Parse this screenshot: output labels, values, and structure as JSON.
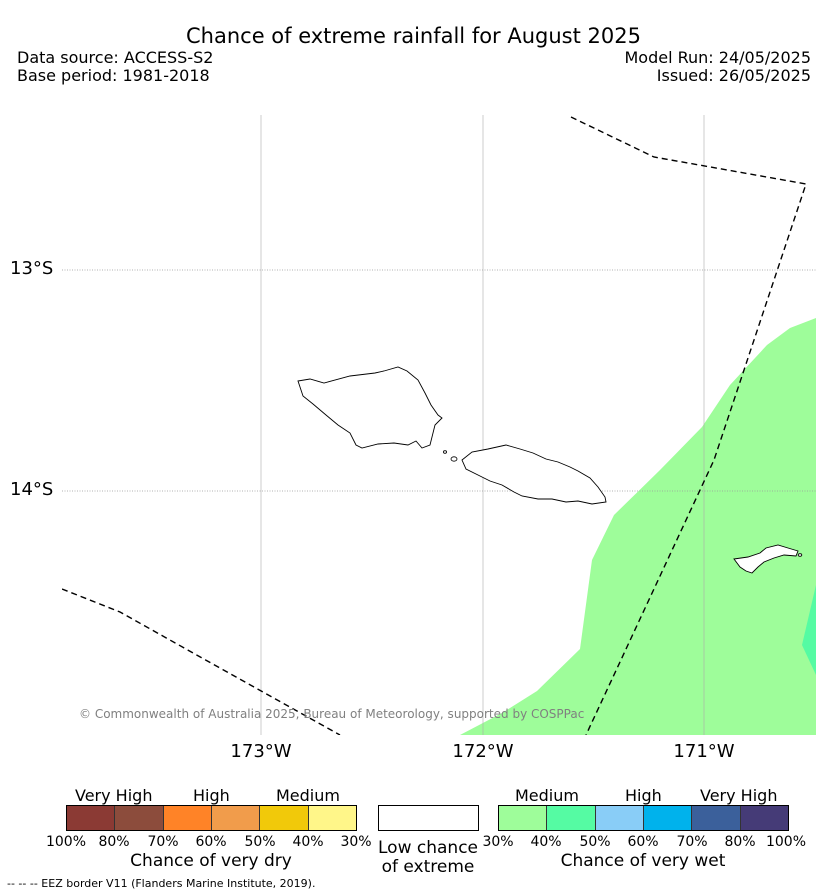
{
  "title": "Chance of extreme rainfall for August 2025",
  "meta": {
    "data_source": "Data source: ACCESS-S2",
    "base_period": "Base period: 1981-2018",
    "model_run": "Model Run: 24/05/2025",
    "issued": "Issued: 26/05/2025"
  },
  "map": {
    "lat_labels": [
      "13°S",
      "14°S"
    ],
    "lon_labels": [
      "173°W",
      "172°W",
      "171°W"
    ],
    "copyright": "© Commonwealth of Australia 2025, Bureau of Meteorology, supported by COSPPac",
    "colors": {
      "medium_wet": "#9efd9a",
      "medium_wet_40": "#55fba3",
      "eez_border": "#000000"
    }
  },
  "legend": {
    "dry": {
      "categories": [
        "Very High",
        "High",
        "Medium"
      ],
      "colors": [
        "#8b3a34",
        "#8c4c3c",
        "#ff8327",
        "#f19c4b",
        "#f1c90a",
        "#fff689"
      ],
      "ticks": [
        "100%",
        "80%",
        "70%",
        "60%",
        "50%",
        "40%",
        "30%"
      ],
      "caption": "Chance of very dry"
    },
    "neutral": {
      "color": "#ffffff",
      "caption_line1": "Low chance",
      "caption_line2": "of extreme"
    },
    "wet": {
      "categories": [
        "Medium",
        "High",
        "Very High"
      ],
      "colors": [
        "#9efd9a",
        "#55fba3",
        "#89cdf7",
        "#00b2ec",
        "#3b609b",
        "#453b77"
      ],
      "ticks": [
        "30%",
        "40%",
        "50%",
        "60%",
        "70%",
        "80%",
        "100%"
      ],
      "caption": "Chance of very wet"
    }
  },
  "footer": "--  --  -- EEZ border V11 (Flanders Marine Institute, 2019)."
}
